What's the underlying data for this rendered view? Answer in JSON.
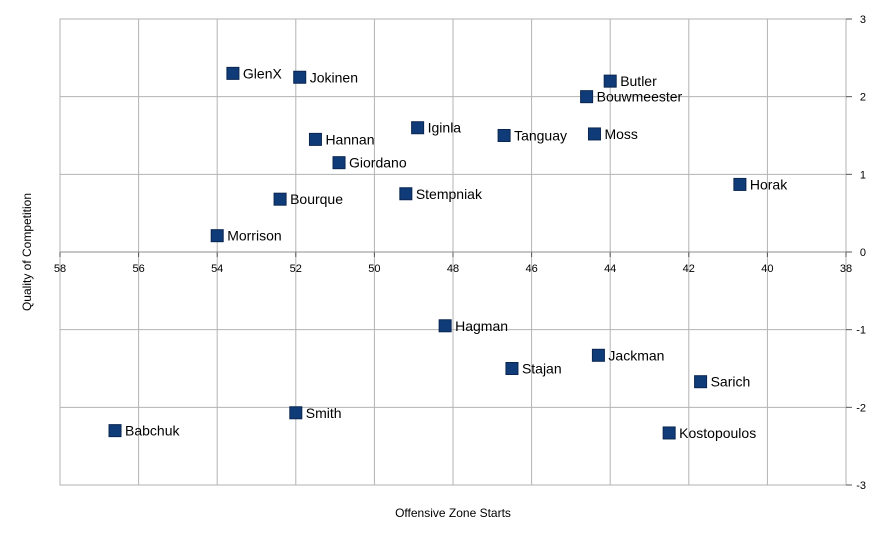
{
  "chart_data": {
    "type": "scatter",
    "title": "",
    "xlabel": "Offensive Zone Starts",
    "ylabel": "Quality of Competition",
    "xlim": [
      58,
      38
    ],
    "ylim": [
      -3,
      3
    ],
    "x_reversed": true,
    "x_ticks": [
      58,
      56,
      54,
      52,
      50,
      48,
      46,
      44,
      42,
      40,
      38
    ],
    "y_ticks": [
      -3,
      -2,
      -1,
      0,
      1,
      2,
      3
    ],
    "grid": true,
    "y_axis_position": "right",
    "marker_color": "#0f3c78",
    "points": [
      {
        "name": "GlenX",
        "x": 53.6,
        "y": 2.3
      },
      {
        "name": "Jokinen",
        "x": 51.9,
        "y": 2.25
      },
      {
        "name": "Butler",
        "x": 44.0,
        "y": 2.2
      },
      {
        "name": "Bouwmeester",
        "x": 44.6,
        "y": 2.0
      },
      {
        "name": "Iginla",
        "x": 48.9,
        "y": 1.6
      },
      {
        "name": "Tanguay",
        "x": 46.7,
        "y": 1.5
      },
      {
        "name": "Moss",
        "x": 44.4,
        "y": 1.52
      },
      {
        "name": "Hannan",
        "x": 51.5,
        "y": 1.45
      },
      {
        "name": "Giordano",
        "x": 50.9,
        "y": 1.15
      },
      {
        "name": "Horak",
        "x": 40.7,
        "y": 0.87
      },
      {
        "name": "Stempniak",
        "x": 49.2,
        "y": 0.75
      },
      {
        "name": "Bourque",
        "x": 52.4,
        "y": 0.68
      },
      {
        "name": "Morrison",
        "x": 54.0,
        "y": 0.21
      },
      {
        "name": "Hagman",
        "x": 48.2,
        "y": -0.95
      },
      {
        "name": "Jackman",
        "x": 44.3,
        "y": -1.33
      },
      {
        "name": "Stajan",
        "x": 46.5,
        "y": -1.5
      },
      {
        "name": "Sarich",
        "x": 41.7,
        "y": -1.67
      },
      {
        "name": "Smith",
        "x": 52.0,
        "y": -2.07
      },
      {
        "name": "Babchuk",
        "x": 56.6,
        "y": -2.3
      },
      {
        "name": "Kostopoulos",
        "x": 42.5,
        "y": -2.33
      }
    ]
  }
}
